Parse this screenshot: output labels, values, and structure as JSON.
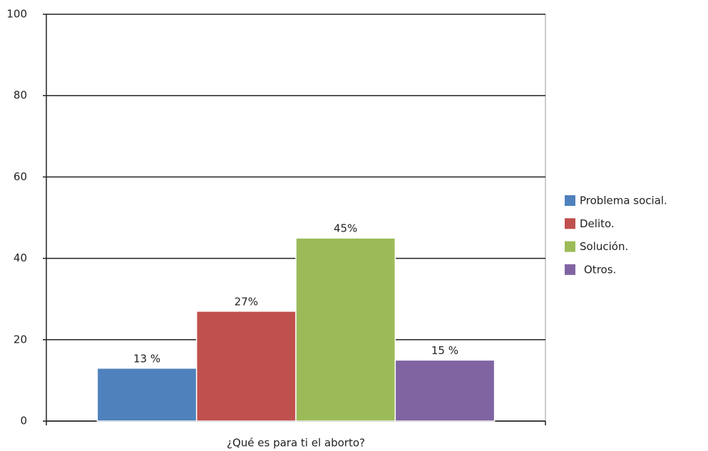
{
  "chart_data": {
    "type": "bar",
    "categories": [
      "¿Qué es para ti el aborto?"
    ],
    "series": [
      {
        "name": "Problema social.",
        "color": "#4f81bd",
        "values": [
          13
        ],
        "value_labels": [
          "13 %"
        ]
      },
      {
        "name": "Delito.",
        "color": "#c0504d",
        "values": [
          27
        ],
        "value_labels": [
          "27%"
        ]
      },
      {
        "name": "Solución.",
        "color": "#9bbb59",
        "values": [
          45
        ],
        "value_labels": [
          "45%"
        ]
      },
      {
        "name": "Otros.",
        "color": "#8064a2",
        "values": [
          15
        ],
        "value_labels": [
          "15 %"
        ]
      }
    ],
    "ylim": [
      0,
      100
    ],
    "yticks": [
      0,
      20,
      40,
      60,
      80,
      100
    ],
    "grid": true,
    "legend": "right"
  }
}
